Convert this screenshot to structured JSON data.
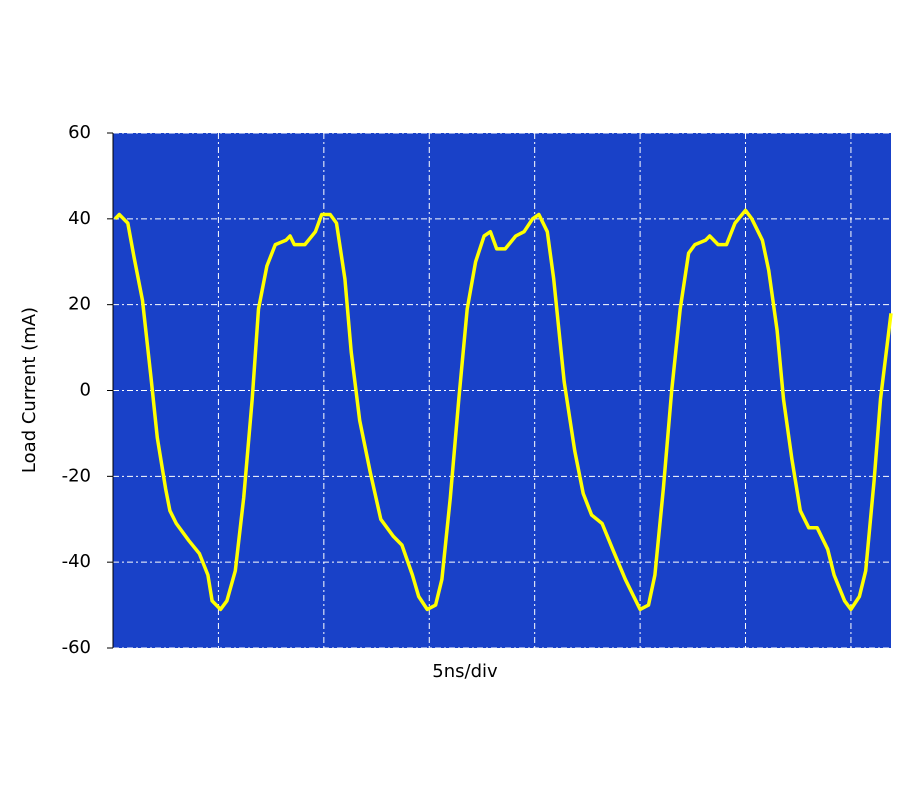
{
  "chart_data": {
    "type": "line",
    "y_label": "Load Current (mA)",
    "x_label": "5ns/div",
    "color": "#ffff00",
    "plot_background": "#1941c8",
    "grid": true,
    "xlim": [
      0,
      36.9
    ],
    "xticks": [
      5,
      10,
      15,
      20,
      25,
      30,
      35
    ],
    "ylim": [
      -60,
      60
    ],
    "yticks": [
      -60,
      -40,
      -20,
      0,
      20,
      40,
      60
    ],
    "x": [
      0.1,
      0.3,
      0.7,
      1.0,
      1.4,
      1.8,
      2.1,
      2.5,
      2.7,
      3.0,
      3.6,
      4.1,
      4.5,
      4.7,
      5.1,
      5.4,
      5.8,
      6.2,
      6.6,
      6.9,
      7.3,
      7.7,
      8.2,
      8.4,
      8.6,
      9.1,
      9.6,
      9.9,
      10.3,
      10.6,
      11.0,
      11.3,
      11.7,
      12.2,
      12.7,
      13.3,
      13.7,
      14.2,
      14.5,
      14.9,
      15.3,
      15.6,
      16.0,
      16.4,
      16.8,
      17.2,
      17.6,
      17.9,
      18.2,
      18.6,
      19.1,
      19.5,
      19.9,
      20.2,
      20.6,
      20.9,
      21.4,
      21.9,
      22.3,
      22.7,
      23.2,
      23.7,
      24.3,
      25.0,
      25.4,
      25.7,
      26.1,
      26.5,
      26.9,
      27.3,
      27.6,
      28.1,
      28.3,
      28.7,
      29.1,
      29.5,
      30.0,
      30.3,
      30.8,
      31.1,
      31.5,
      31.8,
      32.2,
      32.6,
      33.0,
      33.4,
      33.9,
      34.2,
      34.7,
      35.0,
      35.4,
      35.7,
      36.1,
      36.4,
      36.9
    ],
    "values": [
      40,
      41,
      39,
      31,
      21,
      3,
      -11,
      -23,
      -28,
      -31,
      -35,
      -38,
      -43,
      -49,
      -51,
      -49,
      -42,
      -25,
      -2,
      19,
      29,
      34,
      35,
      36,
      34,
      34,
      37,
      41,
      41,
      39,
      26,
      9,
      -7,
      -19,
      -30,
      -34,
      -36,
      -43,
      -48,
      -51,
      -50,
      -44,
      -25,
      -2,
      19,
      30,
      36,
      37,
      33,
      33,
      36,
      37,
      40,
      41,
      37,
      26,
      2,
      -14,
      -24,
      -29,
      -31,
      -37,
      -44,
      -51,
      -50,
      -43,
      -23,
      0,
      19,
      32,
      34,
      35,
      36,
      34,
      34,
      39,
      42,
      40,
      35,
      28,
      14,
      -2,
      -16,
      -28,
      -32,
      -32,
      -37,
      -43,
      -49,
      -51,
      -48,
      -42,
      -21,
      -2,
      18
    ]
  }
}
